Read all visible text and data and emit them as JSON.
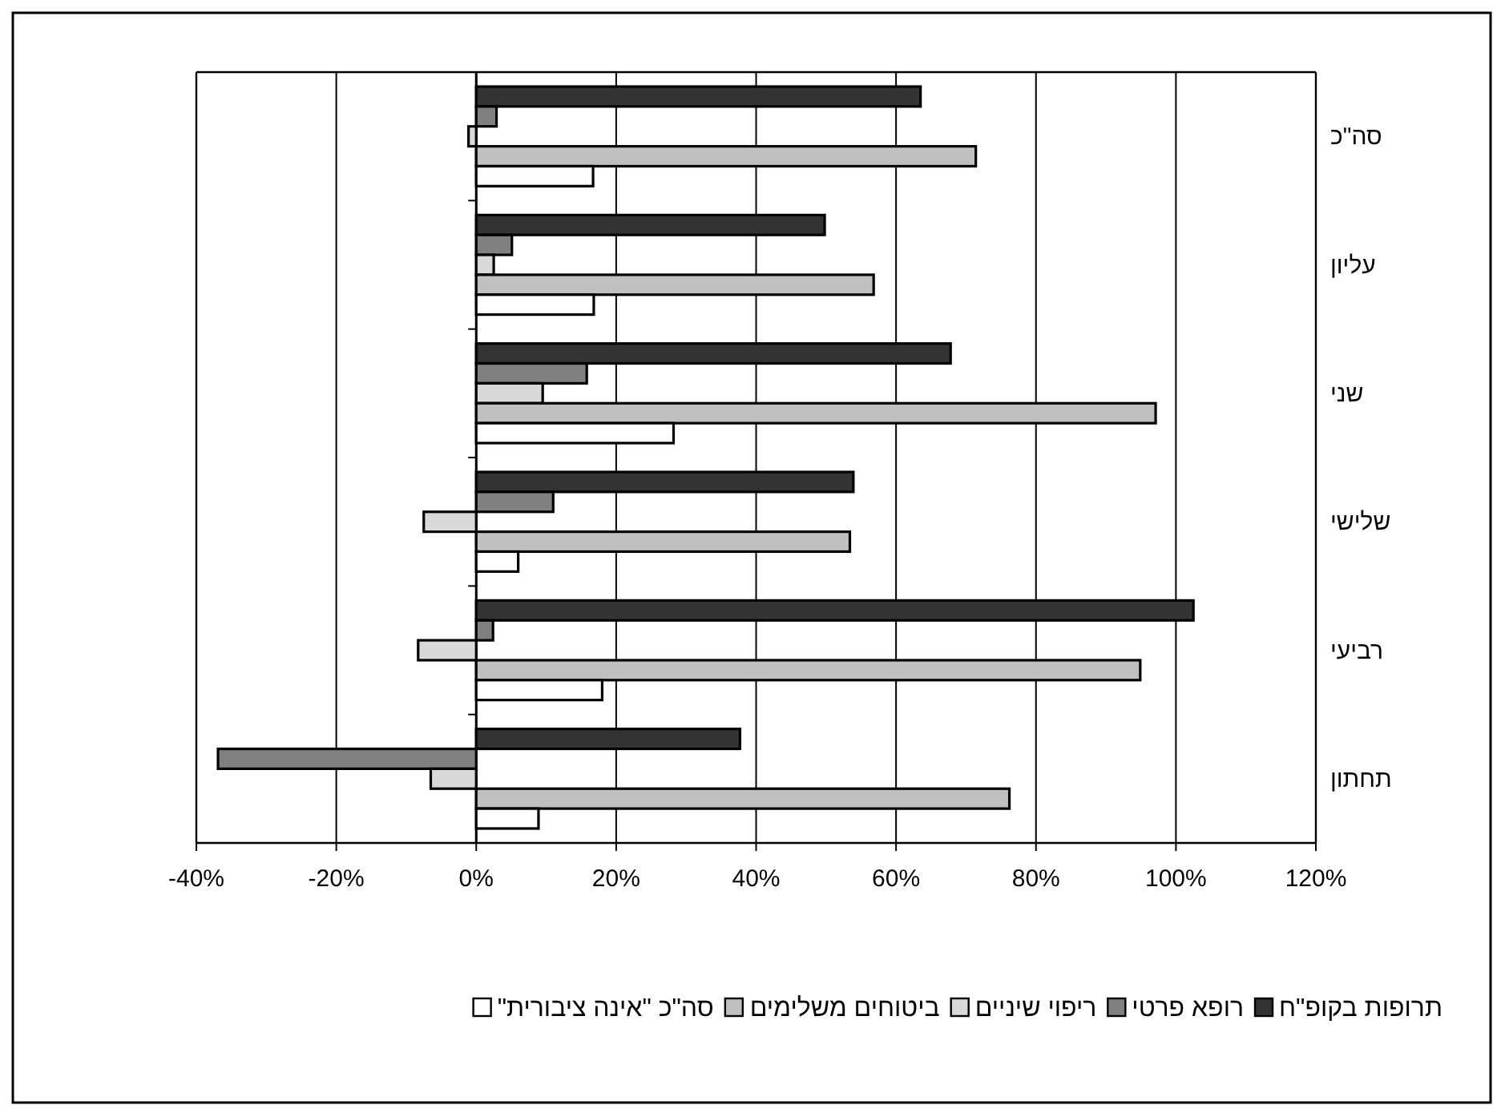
{
  "chart_data": {
    "type": "bar",
    "orientation": "horizontal",
    "categories": [
      "סה\"כ",
      "עליון",
      "שני",
      "שלישי",
      "רביעי",
      "תחתון"
    ],
    "series": [
      {
        "name": "תרופות בקופ\"ח",
        "color": "#333333",
        "values": [
          63.5,
          49.8,
          67.8,
          53.9,
          102.5,
          37.7
        ]
      },
      {
        "name": "רופא פרטי",
        "color": "#808080",
        "values": [
          2.9,
          5.1,
          15.8,
          11.0,
          2.4,
          -36.9
        ]
      },
      {
        "name": "ריפוי שיניים",
        "color": "#d9d9d9",
        "values": [
          -1.1,
          2.5,
          9.5,
          -7.5,
          -8.3,
          -6.5
        ]
      },
      {
        "name": "ביטוחים משלימים",
        "color": "#c0c0c0",
        "values": [
          71.4,
          56.8,
          97.1,
          53.4,
          94.9,
          76.2
        ]
      },
      {
        "name": "סה\"כ \"אינה ציבורית\"",
        "color": "#ffffff",
        "values": [
          16.7,
          16.8,
          28.2,
          6.0,
          18.0,
          8.9
        ]
      }
    ],
    "xlim": [
      -40,
      120
    ],
    "xticks": [
      {
        "value": -40,
        "label": "-40%"
      },
      {
        "value": -20,
        "label": "-20%"
      },
      {
        "value": 0,
        "label": "0%"
      },
      {
        "value": 20,
        "label": "20%"
      },
      {
        "value": 40,
        "label": "40%"
      },
      {
        "value": 60,
        "label": "60%"
      },
      {
        "value": 80,
        "label": "80%"
      },
      {
        "value": 100,
        "label": "100%"
      },
      {
        "value": 120,
        "label": "120%"
      }
    ],
    "grid": "x",
    "legend": "bottom"
  }
}
